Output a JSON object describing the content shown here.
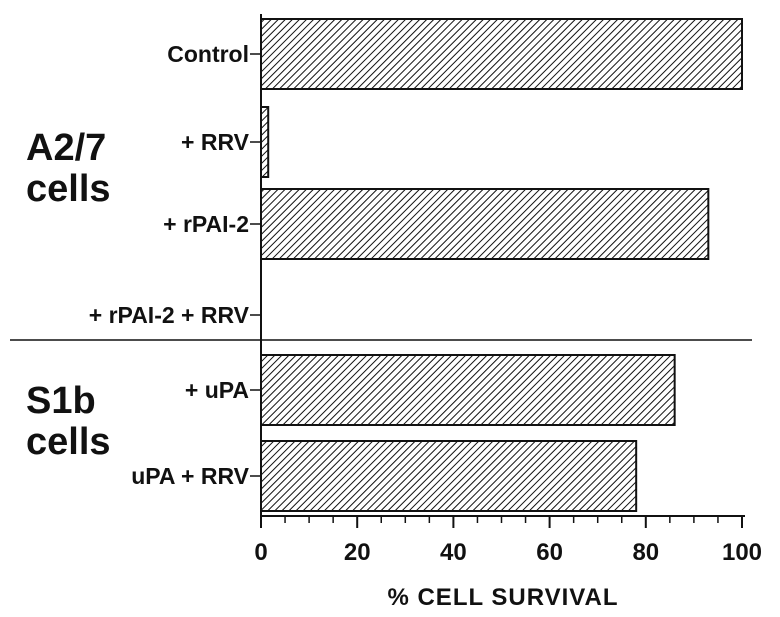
{
  "chart_data": {
    "type": "bar",
    "orientation": "horizontal",
    "xlabel": "% CELL SURVIVAL",
    "xlim": [
      0,
      100
    ],
    "xticks": [
      "0",
      "20",
      "40",
      "60",
      "80",
      "100"
    ],
    "categories": [
      "Control",
      "+ RRV",
      "+ rPAI-2",
      "+ rPAI-2 + RRV",
      "+ uPA",
      "uPA + RRV"
    ],
    "values": [
      100,
      1.5,
      93,
      0,
      86,
      78
    ],
    "groups": [
      {
        "label_line1": "A2/7",
        "label_line2": "cells",
        "categories": [
          "Control",
          "+ RRV",
          "+ rPAI-2",
          "+ rPAI-2 + RRV"
        ]
      },
      {
        "label_line1": "S1b",
        "label_line2": "cells",
        "categories": [
          "+ uPA",
          "uPA + RRV"
        ]
      }
    ],
    "bar_fill": "diagonal-hatch",
    "grid": false
  }
}
